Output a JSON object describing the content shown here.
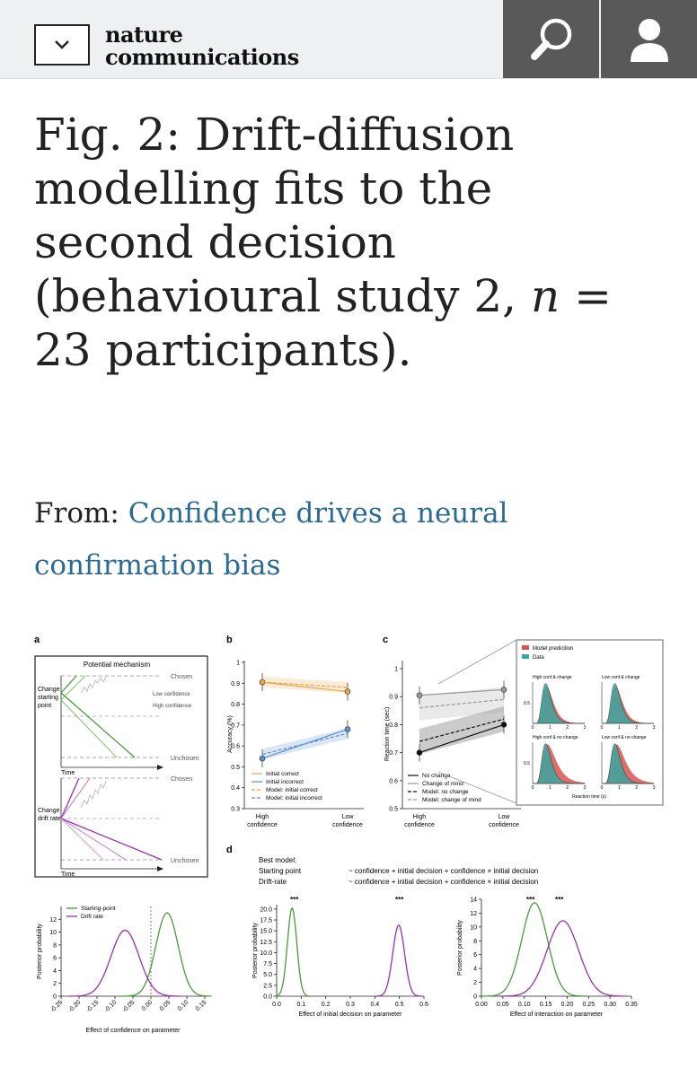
{
  "header": {
    "logo_line1": "nature",
    "logo_line2": "communications",
    "menu_icon": "chevron-down-icon",
    "search_icon": "search-icon",
    "user_icon": "user-icon"
  },
  "figure_title": {
    "prefix": "Fig. 2: Drift-diffusion modelling fits to the second decision (behavioural study 2, ",
    "n_symbol": "n",
    "suffix": " = 23 participants)."
  },
  "source": {
    "from_label": "From:",
    "link_text": "Confidence drives a neural confirmation bias"
  },
  "panels": {
    "a_label": "a",
    "a_title": "Potential mechanism",
    "a_chosen1": "Chosen",
    "a_unchosen1": "Unchosen",
    "a_chosen2": "Chosen",
    "a_unchosen2": "Unchosen",
    "a_time1": "Time",
    "a_time2": "Time",
    "a_change_sp1": "Change",
    "a_change_sp2": "starting",
    "a_change_sp3": "point",
    "a_change_dr1": "Change",
    "a_change_dr2": "drift rate",
    "a_low_conf": "Low confidence",
    "a_high_conf": "High confidence",
    "b_label": "b",
    "c_label": "c",
    "d_label": "d",
    "d_best_model": "Best model:",
    "d_sp_formula_label": "Starting point",
    "d_sp_formula": "~ confidence + initial decision + confidence × initial decision",
    "d_dr_formula_label": "Drift-rate",
    "d_dr_formula": "~ confidence + initial decision + confidence × initial decision",
    "inset_legend_model": "Model predicition",
    "inset_legend_data": "Data",
    "inset_high_change": "High conf & change",
    "inset_low_change": "Low conf & change",
    "inset_high_nochange": "High conf & no change",
    "inset_low_nochange": "Low conf & no change",
    "inset_xlabel": "Reaction time (s)",
    "sig1": "***",
    "sig2": "***",
    "sig3": "***",
    "sig4": "***"
  },
  "chart_data": [
    {
      "id": "b",
      "type": "line",
      "categories": [
        "High confidence",
        "Low confidence"
      ],
      "ylabel": "Accuracy (%)",
      "ylim": [
        0.3,
        1.0
      ],
      "yticks": [
        0.3,
        0.4,
        0.5,
        0.6,
        0.7,
        0.8,
        0.9,
        1.0
      ],
      "series": [
        {
          "name": "Initial correct",
          "values": [
            0.905,
            0.86
          ],
          "color": "#e8a54a",
          "style": "data"
        },
        {
          "name": "Initial incorrect",
          "values": [
            0.54,
            0.68
          ],
          "color": "#5b8fd0",
          "style": "data"
        },
        {
          "name": "Model: initial correct",
          "values": [
            0.905,
            0.88
          ],
          "color": "#e8a54a",
          "style": "model"
        },
        {
          "name": "Model: initial incorrect",
          "values": [
            0.56,
            0.66
          ],
          "color": "#5b8fd0",
          "style": "model"
        }
      ]
    },
    {
      "id": "c",
      "type": "line",
      "categories": [
        "High confidence",
        "Low confidence"
      ],
      "ylabel": "Reaction time (sec)",
      "ylim": [
        0.5,
        1.0
      ],
      "yticks": [
        0.5,
        0.6,
        0.7,
        0.8,
        0.9,
        1.0
      ],
      "series": [
        {
          "name": "No change",
          "values": [
            0.7,
            0.8
          ],
          "color": "#111111",
          "style": "data"
        },
        {
          "name": "Change of mind",
          "values": [
            0.905,
            0.925
          ],
          "color": "#999999",
          "style": "data"
        },
        {
          "name": "Model: no change",
          "values": [
            0.74,
            0.82
          ],
          "color": "#111111",
          "style": "model"
        },
        {
          "name": "Model: change of mind",
          "values": [
            0.86,
            0.89
          ],
          "color": "#999999",
          "style": "model"
        }
      ]
    },
    {
      "id": "d1",
      "type": "line",
      "xlabel": "Effect of confidence on parameter",
      "ylabel": "Posterior probability",
      "xlim": [
        -0.25,
        0.15
      ],
      "ylim": [
        0,
        14
      ],
      "xticks": [
        -0.25,
        -0.2,
        -0.15,
        -0.1,
        -0.05,
        0.0,
        0.05,
        0.1,
        0.15
      ],
      "yticks": [
        0,
        2,
        4,
        6,
        8,
        10,
        12
      ],
      "series": [
        {
          "name": "Starting-point",
          "mean": 0.045,
          "sd": 0.031,
          "peak": 13.0,
          "color": "#4a9a3a"
        },
        {
          "name": "Drift rate",
          "mean": -0.072,
          "sd": 0.039,
          "peak": 10.3,
          "color": "#9b2fb0"
        }
      ]
    },
    {
      "id": "d2",
      "type": "line",
      "xlabel": "Effect of initial decision on parameter",
      "ylabel": "Posterior probability",
      "xlim": [
        0.0,
        0.6
      ],
      "ylim": [
        0,
        21
      ],
      "xticks": [
        0.0,
        0.1,
        0.2,
        0.3,
        0.4,
        0.5,
        0.6
      ],
      "yticks": [
        0,
        2.5,
        5.0,
        7.5,
        10.0,
        12.5,
        15.0,
        17.5,
        20.0
      ],
      "series": [
        {
          "name": "Starting-point",
          "mean": 0.063,
          "sd": 0.019,
          "peak": 20.2,
          "color": "#4a9a3a"
        },
        {
          "name": "Drift rate",
          "mean": 0.497,
          "sd": 0.024,
          "peak": 16.3,
          "color": "#9b2fb0"
        }
      ]
    },
    {
      "id": "d3",
      "type": "line",
      "xlabel": "Effect of interaction on parameter",
      "ylabel": "Posterior probability",
      "xlim": [
        0.0,
        0.35
      ],
      "ylim": [
        0,
        14
      ],
      "xticks": [
        0.0,
        0.05,
        0.1,
        0.15,
        0.2,
        0.25,
        0.3,
        0.35
      ],
      "yticks": [
        0,
        2,
        4,
        6,
        8,
        10,
        12,
        14
      ],
      "series": [
        {
          "name": "Starting-point",
          "mean": 0.124,
          "sd": 0.03,
          "peak": 13.5,
          "color": "#4a9a3a"
        },
        {
          "name": "Drift rate",
          "mean": 0.19,
          "sd": 0.037,
          "peak": 10.9,
          "color": "#9b2fb0"
        }
      ]
    }
  ]
}
